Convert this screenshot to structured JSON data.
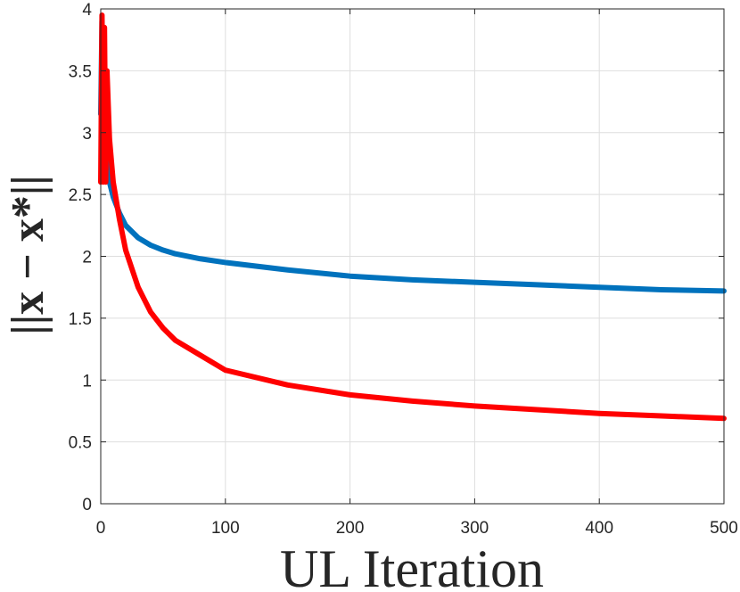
{
  "chart_data": {
    "type": "line",
    "title": "",
    "xlabel": "UL Iteration",
    "ylabel": "||x − x*||",
    "xlim": [
      0,
      500
    ],
    "ylim": [
      0,
      4
    ],
    "xticks": [
      0,
      100,
      200,
      300,
      400,
      500
    ],
    "xtick_labels": [
      "0",
      "100",
      "200",
      "300",
      "400",
      "500"
    ],
    "yticks": [
      0,
      0.5,
      1,
      1.5,
      2,
      2.5,
      3,
      3.5,
      4
    ],
    "ytick_labels": [
      "0",
      "0.5",
      "1",
      "1.5",
      "2",
      "2.5",
      "3",
      "3.5",
      "4"
    ],
    "grid": true,
    "legend": "none",
    "series": [
      {
        "color": "#0072BD",
        "x": [
          0,
          1,
          2,
          3,
          5,
          7,
          10,
          15,
          20,
          30,
          40,
          50,
          60,
          80,
          100,
          150,
          200,
          250,
          300,
          350,
          400,
          450,
          500
        ],
        "y": [
          3.15,
          3.9,
          3.35,
          3.05,
          2.75,
          2.6,
          2.48,
          2.35,
          2.25,
          2.15,
          2.09,
          2.05,
          2.02,
          1.98,
          1.95,
          1.89,
          1.84,
          1.81,
          1.79,
          1.77,
          1.75,
          1.73,
          1.72
        ]
      },
      {
        "color": "#FF0000",
        "x": [
          0,
          1,
          2,
          3,
          4,
          5,
          7,
          10,
          15,
          20,
          30,
          40,
          50,
          60,
          80,
          100,
          150,
          200,
          250,
          300,
          350,
          400,
          450,
          500
        ],
        "y": [
          2.6,
          3.95,
          2.6,
          3.85,
          2.6,
          3.5,
          2.95,
          2.6,
          2.3,
          2.05,
          1.75,
          1.55,
          1.42,
          1.32,
          1.2,
          1.08,
          0.96,
          0.88,
          0.83,
          0.79,
          0.76,
          0.73,
          0.71,
          0.69
        ]
      }
    ]
  }
}
